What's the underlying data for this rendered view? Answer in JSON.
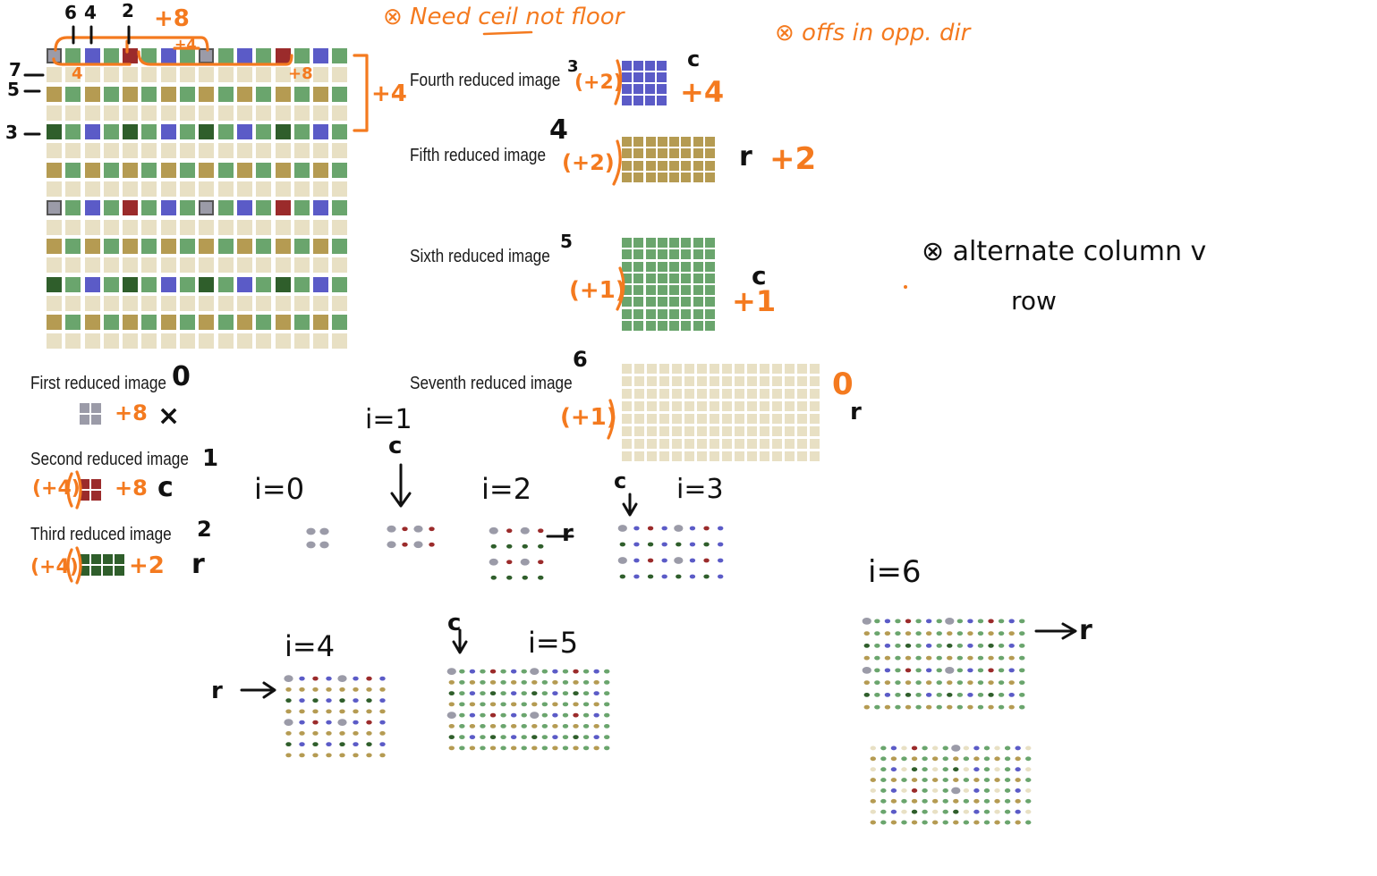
{
  "colors": {
    "gray": "#9b9ba8",
    "red": "#9b2b2b",
    "darkgreen": "#2f5e2b",
    "blue": "#5b5bc7",
    "khaki": "#b59b52",
    "green": "#6aa56d",
    "cream": "#e8e0c4",
    "orange": "#f47a1f",
    "ink": "#111111"
  },
  "labels": {
    "first": "First reduced image",
    "second": "Second reduced image",
    "third": "Third reduced image",
    "fourth": "Fourth reduced image",
    "fifth": "Fifth reduced image",
    "sixth": "Sixth reduced image",
    "seventh": "Seventh reduced image"
  },
  "notes": {
    "top1": "⊗ Need ceil not floor",
    "top2": "⊗ offs in opp. dir",
    "alt1": "⊗ alternate column v",
    "alt2": "row",
    "plus8_top": "+8",
    "plus4_side": "+4",
    "col_marks": [
      "6",
      "4",
      "2"
    ],
    "row_marks": [
      "7",
      "5",
      "3"
    ],
    "bracket_left": "4",
    "bracket_right": "+8",
    "bracket_mid": "+4"
  },
  "annotations": {
    "first": {
      "num": "0",
      "orange": "+8",
      "mark": "×"
    },
    "second": {
      "num": "1",
      "orange_left": "(+4)",
      "orange": "+8",
      "mark": "c"
    },
    "third": {
      "num": "2",
      "orange_left": "(+4)",
      "orange": "+2",
      "mark": "r"
    },
    "fourth": {
      "num": "3",
      "orange_left": "(+2)",
      "orange": "+4",
      "mark": "c"
    },
    "fifth": {
      "num": "4",
      "orange_left": "(+2)",
      "orange": "+2",
      "mark": "r"
    },
    "sixth": {
      "num": "5",
      "orange_left": "(+1)",
      "orange": "+1",
      "mark": "c"
    },
    "seventh": {
      "num": "6",
      "orange_left": "(+1)",
      "orange": "0",
      "mark": "r"
    }
  },
  "steps": {
    "i0": "i=0",
    "i1": "i=1",
    "i2": "i=2",
    "i3": "i=3",
    "i4": "i=4",
    "i5": "i=5",
    "i6": "i=6",
    "c": "c",
    "r": "r",
    "r_arrow": "r"
  }
}
